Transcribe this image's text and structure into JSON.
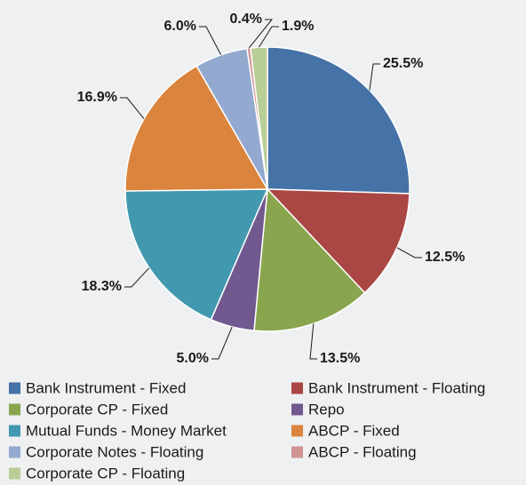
{
  "chart_data": {
    "type": "pie",
    "categories": [
      "Bank Instrument - Fixed",
      "Bank Instrument - Floating",
      "Corporate CP - Fixed",
      "Repo",
      "Mutual Funds - Money Market",
      "ABCP - Fixed",
      "Corporate Notes - Floating",
      "ABCP - Floating",
      "Corporate CP - Floating"
    ],
    "values": [
      25.5,
      12.5,
      13.5,
      5.0,
      18.3,
      16.9,
      6.0,
      0.4,
      1.9
    ],
    "value_labels": [
      "25.5%",
      "12.5%",
      "13.5%",
      "5.0%",
      "18.3%",
      "16.9%",
      "6.0%",
      "0.4%",
      "1.9%"
    ],
    "colors": [
      "#4572a7",
      "#aa4643",
      "#89a54e",
      "#71588f",
      "#4198af",
      "#db843d",
      "#93a9cf",
      "#d19392",
      "#b9cd96"
    ],
    "legend": "bottom"
  }
}
